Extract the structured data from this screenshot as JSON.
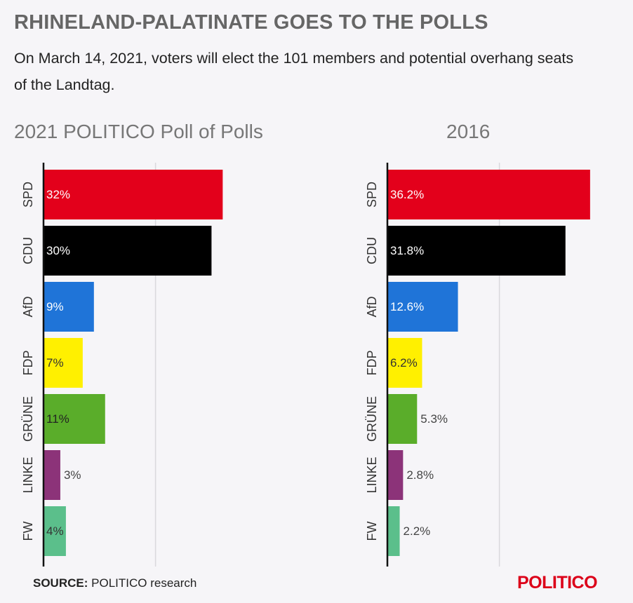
{
  "header": {
    "title": "RHINELAND-PALATINATE GOES TO THE POLLS",
    "subtitle": "On March 14, 2021, voters will elect the 101 members and potential overhang seats of the Landtag."
  },
  "footer": {
    "source_label": "SOURCE:",
    "source_text": "POLITICO research",
    "logo": "POLITICO"
  },
  "chart_data": [
    {
      "type": "bar",
      "orientation": "horizontal",
      "title": "2021 POLITICO Poll of Polls",
      "categories": [
        "SPD",
        "CDU",
        "AfD",
        "FDP",
        "GRÜNE",
        "LINKE",
        "FW"
      ],
      "values": [
        32,
        30,
        9,
        7,
        11,
        3,
        4
      ],
      "labels": [
        "32%",
        "30%",
        "9%",
        "7%",
        "11%",
        "3%",
        "4%"
      ],
      "xlim": [
        0,
        40
      ],
      "grid": true
    },
    {
      "type": "bar",
      "orientation": "horizontal",
      "title": "2016",
      "categories": [
        "SPD",
        "CDU",
        "AfD",
        "FDP",
        "GRÜNE",
        "LINKE",
        "FW"
      ],
      "values": [
        36.2,
        31.8,
        12.6,
        6.2,
        5.3,
        2.8,
        2.2
      ],
      "labels": [
        "36.2%",
        "31.8%",
        "12.6%",
        "6.2%",
        "5.3%",
        "2.8%",
        "2.2%"
      ],
      "xlim": [
        0,
        40
      ],
      "grid": true
    }
  ],
  "colors": {
    "SPD": "#e3001b",
    "CDU": "#000000",
    "AfD": "#1f74d8",
    "FDP": "#fff000",
    "GRÜNE": "#5aad2a",
    "LINKE": "#8c3379",
    "FW": "#5bbf8b"
  },
  "label_colors": {
    "SPD": "#ffffff",
    "CDU": "#ffffff",
    "AfD": "#ffffff",
    "FDP": "#333333",
    "GRÜNE": "#222222",
    "LINKE": "#444444",
    "FW": "#333333"
  }
}
